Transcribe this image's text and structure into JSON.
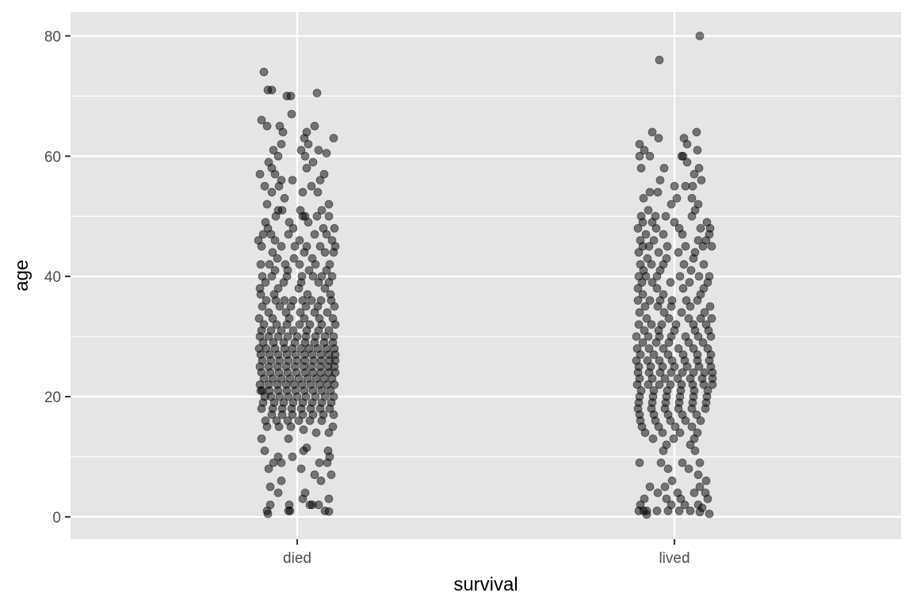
{
  "chart_data": {
    "type": "scatter",
    "subtype": "jitter",
    "title": "",
    "xlabel": "survival",
    "ylabel": "age",
    "categories": [
      "died",
      "lived"
    ],
    "ylim": [
      -3.7,
      84
    ],
    "yticks": [
      0,
      20,
      40,
      60,
      80
    ],
    "grid": true,
    "legend": "none",
    "colors": {
      "panel": "#e5e5e5",
      "grid": "#ffffff",
      "point": "#000000",
      "tick_text": "#4d4d4d",
      "tick_mark": "#333333"
    },
    "point_opacity": 0.5,
    "series": [
      {
        "name": "died",
        "y": [
          74,
          71,
          71,
          70,
          70.5,
          70,
          67,
          66,
          65,
          65,
          65,
          64,
          64,
          63,
          63,
          62,
          62,
          61,
          61,
          61,
          60.5,
          60,
          60,
          59,
          59,
          58,
          58,
          57,
          57,
          57,
          56,
          56,
          56,
          55,
          55,
          55,
          54,
          54,
          54,
          53,
          52,
          52,
          51,
          51,
          51,
          51,
          50,
          50,
          50,
          50,
          50,
          49,
          49,
          49,
          48,
          48,
          48,
          48,
          47,
          47,
          47,
          47,
          47,
          46,
          46,
          46,
          46,
          45,
          45,
          45,
          45,
          45,
          45,
          44,
          44,
          44,
          44,
          43,
          43,
          43,
          42,
          42,
          42,
          42,
          42,
          42,
          41,
          41,
          41,
          41,
          40,
          40,
          40,
          40,
          40,
          40,
          40,
          39,
          39,
          39,
          39,
          39,
          38,
          38,
          38,
          38,
          37,
          37,
          37,
          37,
          36,
          36,
          36,
          36,
          36,
          36,
          36,
          36,
          35,
          35,
          35,
          35,
          35,
          35,
          34,
          34,
          34,
          34,
          34,
          33,
          33,
          33,
          33,
          33,
          33,
          32,
          32,
          32,
          32,
          32,
          32,
          32,
          31,
          31,
          31,
          31,
          31,
          31,
          31,
          30,
          30,
          30,
          30,
          30,
          30,
          30,
          30,
          30,
          29,
          29,
          29,
          29,
          29,
          29,
          29,
          29,
          28,
          28,
          28,
          28,
          28,
          28,
          28,
          28,
          28,
          28,
          27,
          27,
          27,
          27,
          27,
          27,
          27,
          27,
          27,
          27,
          26,
          26,
          26,
          26,
          26,
          26,
          26,
          26,
          26,
          26,
          25,
          25,
          25,
          25,
          25,
          25,
          25,
          25,
          25,
          25,
          24,
          24,
          24,
          24,
          24,
          24,
          24,
          24,
          24,
          24,
          23,
          23,
          23,
          23,
          23,
          23,
          23,
          23,
          23,
          22,
          22,
          22,
          22,
          22,
          22,
          22,
          22,
          22,
          22,
          21,
          21,
          21,
          21,
          21,
          21,
          21,
          21,
          21,
          21,
          20,
          20,
          20,
          20,
          20,
          20,
          20,
          20,
          20,
          19,
          19,
          19,
          19,
          19,
          19,
          19,
          19,
          18,
          18,
          18,
          18,
          18,
          18,
          18,
          18,
          17,
          17,
          17,
          17,
          17,
          17,
          17,
          16,
          16,
          16,
          16,
          16,
          16,
          15,
          15,
          15,
          15,
          14.5,
          14,
          14,
          13,
          13,
          11.5,
          11,
          11,
          11,
          10,
          10,
          10,
          9,
          9,
          9,
          9,
          8,
          8,
          7,
          7,
          6,
          6,
          5,
          4,
          4,
          3,
          3,
          2,
          2,
          2,
          2,
          2,
          1,
          1,
          1,
          1,
          0.9,
          0.5
        ],
        "jitter": [
          -42,
          -37,
          -32,
          -8,
          25,
          -13,
          -7,
          -45,
          -38,
          -22,
          22,
          -18,
          12,
          9,
          46,
          -20,
          14,
          -30,
          27,
          5,
          37,
          -24,
          10,
          -36,
          20,
          -32,
          12,
          -47,
          -28,
          34,
          -6,
          -20,
          29,
          -41,
          -23,
          18,
          -32,
          7,
          26,
          -16,
          -38,
          40,
          -24,
          -19,
          4,
          31,
          -27,
          7,
          10,
          25,
          40,
          -40,
          -10,
          14,
          -37,
          -5,
          33,
          47,
          -43,
          -33,
          -11,
          22,
          37,
          -49,
          -28,
          3,
          44,
          -45,
          -20,
          -3,
          12,
          29,
          48,
          -31,
          9,
          35,
          46,
          -25,
          -4,
          19,
          -46,
          -35,
          -15,
          3,
          23,
          41,
          -28,
          -12,
          15,
          37,
          -44,
          -32,
          -13,
          6,
          20,
          31,
          44,
          -40,
          -17,
          5,
          27,
          40,
          -47,
          -24,
          2,
          35,
          -46,
          -29,
          13,
          42,
          -39,
          -27,
          -16,
          -5,
          7,
          18,
          30,
          43,
          -44,
          -22,
          -8,
          11,
          26,
          47,
          -36,
          -14,
          4,
          22,
          38,
          -48,
          -31,
          -10,
          9,
          28,
          45,
          -42,
          -26,
          -13,
          3,
          16,
          31,
          48,
          -45,
          -33,
          -20,
          -5,
          12,
          27,
          40,
          -47,
          -36,
          -24,
          -12,
          0,
          11,
          23,
          35,
          46,
          -43,
          -30,
          -17,
          -3,
          10,
          22,
          34,
          45,
          -48,
          -39,
          -28,
          -16,
          -6,
          5,
          15,
          26,
          37,
          47,
          -46,
          -35,
          -24,
          -13,
          -2,
          9,
          19,
          30,
          40,
          48,
          -44,
          -33,
          -22,
          -11,
          0,
          10,
          21,
          31,
          41,
          48,
          -47,
          -36,
          -25,
          -14,
          -3,
          8,
          18,
          29,
          39,
          47,
          -45,
          -34,
          -23,
          -12,
          -1,
          10,
          20,
          30,
          40,
          48,
          -42,
          -31,
          -20,
          -9,
          2,
          13,
          24,
          34,
          44,
          -47,
          -36,
          -25,
          -14,
          -4,
          6,
          17,
          28,
          38,
          47,
          -46,
          -35,
          -24,
          -13,
          -2,
          9,
          20,
          31,
          42,
          -44,
          -33,
          -22,
          -11,
          0,
          11,
          23,
          35,
          46,
          -41,
          -29,
          -17,
          -5,
          7,
          19,
          31,
          43,
          -43,
          -31,
          -19,
          -7,
          5,
          17,
          29,
          41,
          -45,
          -32,
          -19,
          -6,
          7,
          20,
          33,
          46,
          -40,
          -26,
          -12,
          2,
          16,
          31,
          45,
          -38,
          -23,
          -8,
          8,
          24,
          40,
          -11,
          -45,
          12,
          -41,
          39,
          8,
          -24,
          -6,
          41,
          -20,
          28,
          -30,
          38,
          -36,
          5,
          22,
          43,
          -20,
          30,
          -34,
          10,
          -24,
          40,
          7,
          -34,
          19,
          27,
          16,
          -10,
          -38,
          -11,
          35,
          -9,
          40,
          -37,
          -33,
          -20,
          -26,
          -28,
          42
        ]
      },
      {
        "name": "lived",
        "y": [
          80,
          76,
          64,
          64,
          63,
          63,
          62,
          62,
          61,
          61,
          60,
          60,
          60,
          60,
          59,
          58,
          58,
          58,
          57,
          56,
          56,
          55,
          55,
          55,
          54,
          54,
          53,
          53,
          53,
          52,
          52,
          51,
          51,
          50,
          50,
          50,
          50,
          49,
          49,
          49,
          49,
          48,
          48,
          48,
          48,
          48,
          47,
          47,
          47,
          47,
          46,
          46,
          46,
          46,
          45,
          45,
          45,
          45,
          45,
          45,
          44,
          44,
          44,
          44,
          43,
          43,
          43,
          42,
          42,
          42,
          42,
          42,
          41,
          41,
          41,
          40,
          40,
          40,
          40,
          40,
          40,
          39,
          39,
          39,
          39,
          39,
          38,
          38,
          38,
          38,
          37,
          37,
          37,
          36,
          36,
          36,
          36,
          36,
          36,
          35,
          35,
          35,
          35,
          35,
          34,
          34,
          34,
          34,
          33,
          33,
          33,
          33,
          33,
          32,
          32,
          32,
          32,
          32,
          32,
          31,
          31,
          31,
          31,
          31,
          30,
          30,
          30,
          30,
          30,
          30,
          30,
          29,
          29,
          29,
          29,
          29,
          28,
          28,
          28,
          28,
          28,
          28,
          27,
          27,
          27,
          27,
          27,
          27,
          26,
          26,
          26,
          26,
          26,
          26,
          26,
          25,
          25,
          25,
          25,
          25,
          25,
          25,
          24,
          24,
          24,
          24,
          24,
          24,
          24,
          24,
          23,
          23,
          23,
          23,
          23,
          23,
          23,
          22,
          22,
          22,
          22,
          22,
          22,
          22,
          22,
          21,
          21,
          21,
          21,
          21,
          21,
          20,
          20,
          20,
          20,
          20,
          20,
          19,
          19,
          19,
          19,
          19,
          19,
          18,
          18,
          18,
          18,
          18,
          18,
          17,
          17,
          17,
          17,
          17,
          16,
          16,
          16,
          16,
          16,
          15,
          15,
          15,
          15,
          14,
          14,
          14,
          14,
          13,
          13,
          13,
          12,
          12,
          11,
          11,
          9,
          9,
          9,
          9,
          8,
          8,
          7,
          6,
          6,
          5,
          5,
          5,
          4,
          4,
          4,
          4,
          3,
          3,
          3,
          3,
          2,
          2,
          2,
          2,
          1.5,
          1,
          1,
          1,
          1,
          1,
          1,
          1,
          0.8,
          0.5,
          0.4
        ],
        "jitter": [
          32,
          -19,
          -28,
          28,
          -20,
          12,
          -44,
          16,
          -38,
          29,
          -44,
          -31,
          9,
          11,
          16,
          -42,
          -13,
          31,
          25,
          -18,
          34,
          0,
          23,
          14,
          -31,
          -21,
          -39,
          3,
          22,
          -4,
          30,
          -33,
          26,
          -42,
          -24,
          -11,
          22,
          -40,
          -28,
          0,
          41,
          -46,
          -23,
          6,
          33,
          45,
          -36,
          -14,
          10,
          44,
          -43,
          -26,
          30,
          40,
          -40,
          -32,
          -9,
          14,
          36,
          47,
          -45,
          -20,
          5,
          26,
          -34,
          -10,
          24,
          -43,
          -29,
          -14,
          12,
          37,
          -39,
          -18,
          21,
          -45,
          -36,
          -22,
          7,
          31,
          44,
          -41,
          -28,
          -5,
          19,
          42,
          -46,
          -22,
          11,
          37,
          -40,
          -14,
          33,
          -46,
          -31,
          -18,
          -3,
          15,
          29,
          -37,
          -21,
          -4,
          20,
          45,
          -44,
          -13,
          9,
          38,
          -35,
          -7,
          18,
          33,
          47,
          -45,
          -29,
          -16,
          2,
          24,
          40,
          -38,
          -20,
          0,
          26,
          43,
          -48,
          -33,
          -19,
          -4,
          14,
          30,
          46,
          -40,
          -23,
          -7,
          18,
          36,
          -47,
          -32,
          -14,
          5,
          24,
          42,
          -43,
          -26,
          -8,
          11,
          29,
          46,
          -48,
          -34,
          -19,
          -3,
          13,
          29,
          44,
          -45,
          -30,
          -15,
          0,
          16,
          31,
          46,
          -46,
          -32,
          -18,
          -4,
          10,
          24,
          38,
          48,
          -44,
          -28,
          -12,
          4,
          20,
          35,
          48,
          -47,
          -33,
          -19,
          -5,
          9,
          23,
          37,
          48,
          -42,
          -26,
          -9,
          8,
          25,
          42,
          -44,
          -27,
          -10,
          7,
          24,
          41,
          -45,
          -28,
          -11,
          6,
          23,
          40,
          -46,
          -29,
          -12,
          5,
          22,
          39,
          -44,
          -26,
          -8,
          10,
          28,
          -43,
          -24,
          -5,
          14,
          33,
          -41,
          -20,
          1,
          22,
          -37,
          -15,
          7,
          29,
          -27,
          -1,
          25,
          -10,
          20,
          -14,
          26,
          -44,
          -17,
          10,
          32,
          -8,
          18,
          30,
          -3,
          40,
          -31,
          -12,
          32,
          -21,
          4,
          25,
          39,
          -38,
          -10,
          8,
          42,
          -43,
          30,
          -4,
          13,
          35,
          -39,
          -45,
          -35,
          -22,
          -8,
          6,
          20,
          32,
          44,
          -35,
          -25,
          41
        ]
      }
    ]
  }
}
